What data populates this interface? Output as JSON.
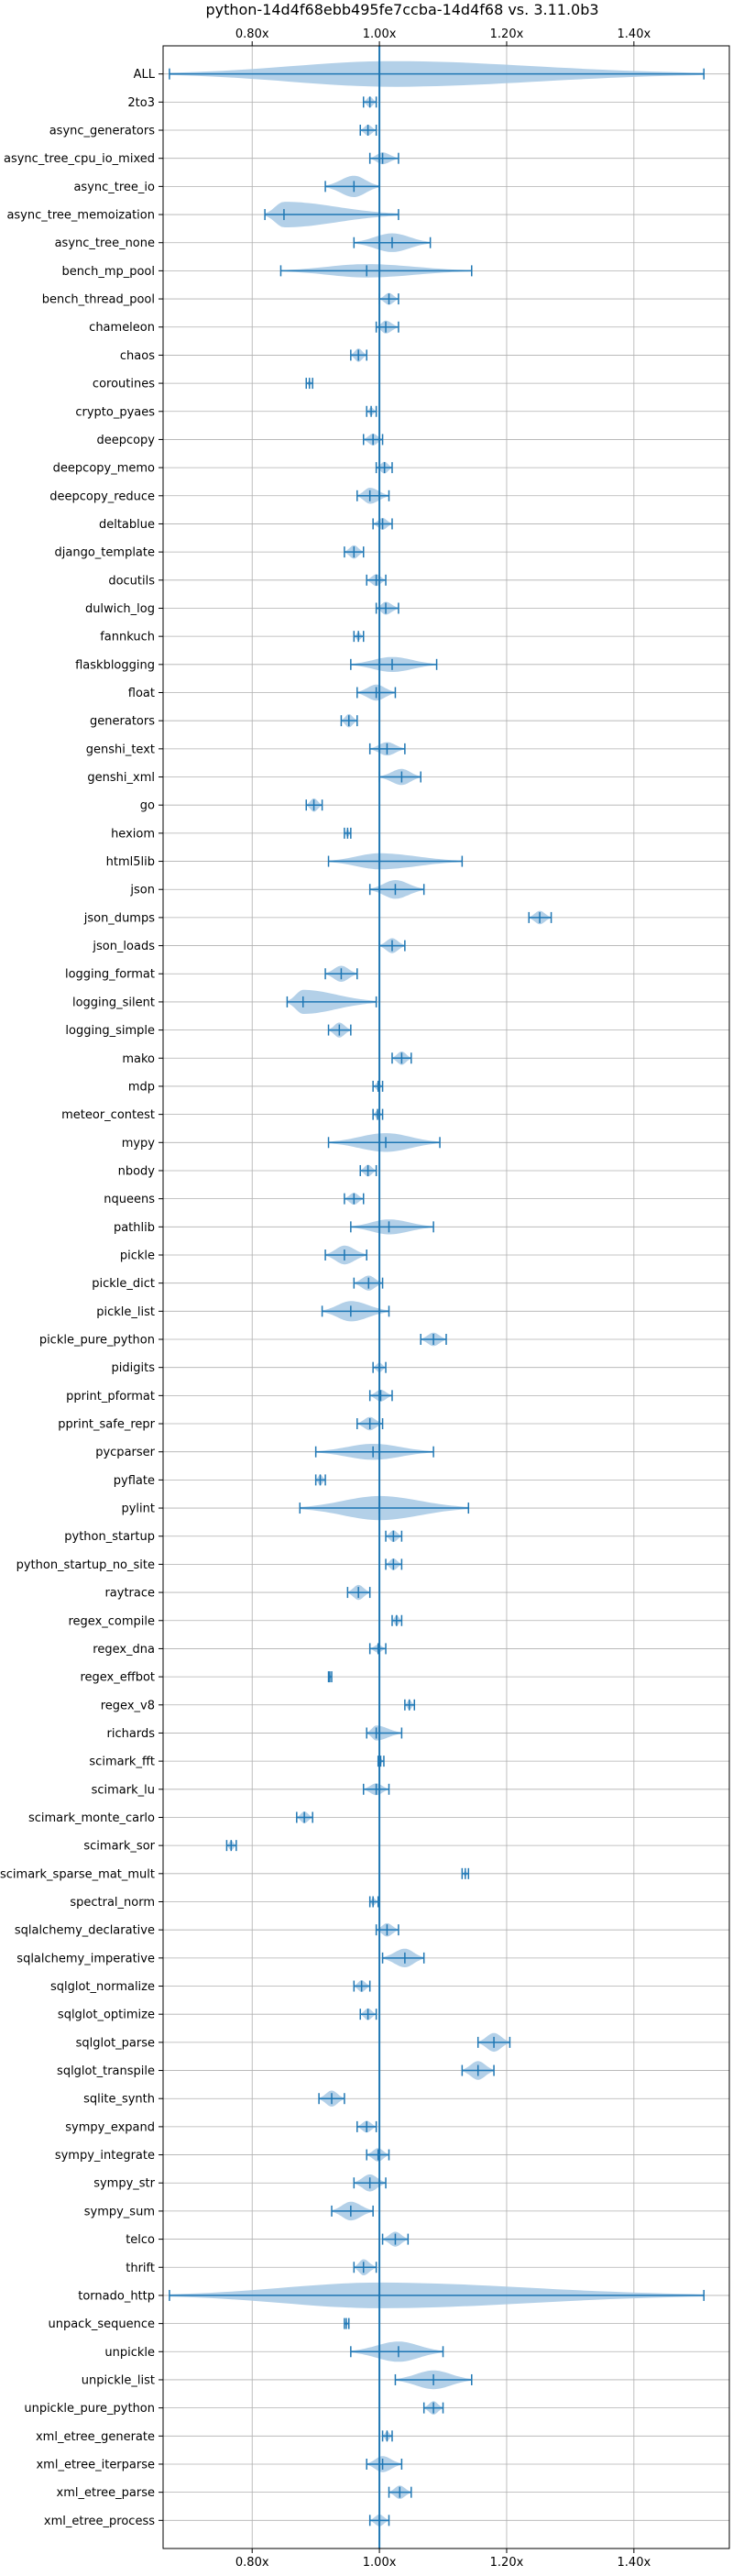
{
  "chart_data": {
    "type": "violin",
    "title": "python-14d4f68ebb495fe7ccba-14d4f68 vs. 3.11.0b3",
    "xlim": [
      0.66,
      1.55
    ],
    "xticks": [
      {
        "value": 0.8,
        "label": "0.80x"
      },
      {
        "value": 1.0,
        "label": "1.00x"
      },
      {
        "value": 1.2,
        "label": "1.20x"
      },
      {
        "value": 1.4,
        "label": "1.40x"
      }
    ],
    "grid": true,
    "color": "#1f77b4",
    "fill_color": "#a6c8e4",
    "categories": [
      "ALL",
      "2to3",
      "async_generators",
      "async_tree_cpu_io_mixed",
      "async_tree_io",
      "async_tree_memoization",
      "async_tree_none",
      "bench_mp_pool",
      "bench_thread_pool",
      "chameleon",
      "chaos",
      "coroutines",
      "crypto_pyaes",
      "deepcopy",
      "deepcopy_memo",
      "deepcopy_reduce",
      "deltablue",
      "django_template",
      "docutils",
      "dulwich_log",
      "fannkuch",
      "flaskblogging",
      "float",
      "generators",
      "genshi_text",
      "genshi_xml",
      "go",
      "hexiom",
      "html5lib",
      "json",
      "json_dumps",
      "json_loads",
      "logging_format",
      "logging_silent",
      "logging_simple",
      "mako",
      "mdp",
      "meteor_contest",
      "mypy",
      "nbody",
      "nqueens",
      "pathlib",
      "pickle",
      "pickle_dict",
      "pickle_list",
      "pickle_pure_python",
      "pidigits",
      "pprint_pformat",
      "pprint_safe_repr",
      "pycparser",
      "pyflate",
      "pylint",
      "python_startup",
      "python_startup_no_site",
      "raytrace",
      "regex_compile",
      "regex_dna",
      "regex_effbot",
      "regex_v8",
      "richards",
      "scimark_fft",
      "scimark_lu",
      "scimark_monte_carlo",
      "scimark_sor",
      "scimark_sparse_mat_mult",
      "spectral_norm",
      "sqlalchemy_declarative",
      "sqlalchemy_imperative",
      "sqlglot_normalize",
      "sqlglot_optimize",
      "sqlglot_parse",
      "sqlglot_transpile",
      "sqlite_synth",
      "sympy_expand",
      "sympy_integrate",
      "sympy_str",
      "sympy_sum",
      "telco",
      "thrift",
      "tornado_http",
      "unpack_sequence",
      "unpickle",
      "unpickle_list",
      "unpickle_pure_python",
      "xml_etree_generate",
      "xml_etree_iterparse",
      "xml_etree_parse",
      "xml_etree_process"
    ],
    "series": [
      {
        "min": 0.67,
        "max": 1.51,
        "mean": 1.0,
        "peak": 1.02,
        "hw": 0.48
      },
      {
        "min": 0.975,
        "max": 0.995,
        "mean": 0.985,
        "peak": 0.985,
        "hw": 0.2
      },
      {
        "min": 0.97,
        "max": 0.995,
        "mean": 0.982,
        "peak": 0.982,
        "hw": 0.2
      },
      {
        "min": 0.985,
        "max": 1.03,
        "mean": 1.005,
        "peak": 1.005,
        "hw": 0.22
      },
      {
        "min": 0.915,
        "max": 1.0,
        "mean": 0.96,
        "peak": 0.96,
        "hw": 0.4
      },
      {
        "min": 0.82,
        "max": 1.03,
        "mean": 0.85,
        "peak": 0.85,
        "hw": 0.48
      },
      {
        "min": 0.96,
        "max": 1.08,
        "mean": 1.02,
        "peak": 1.02,
        "hw": 0.35
      },
      {
        "min": 0.845,
        "max": 1.145,
        "mean": 0.98,
        "peak": 0.98,
        "hw": 0.25
      },
      {
        "min": 1.0,
        "max": 1.03,
        "mean": 1.015,
        "peak": 1.015,
        "hw": 0.22
      },
      {
        "min": 0.995,
        "max": 1.03,
        "mean": 1.01,
        "peak": 1.01,
        "hw": 0.24
      },
      {
        "min": 0.955,
        "max": 0.98,
        "mean": 0.967,
        "peak": 0.967,
        "hw": 0.25
      },
      {
        "min": 0.885,
        "max": 0.895,
        "mean": 0.89,
        "peak": 0.89,
        "hw": 0.1
      },
      {
        "min": 0.98,
        "max": 0.995,
        "mean": 0.987,
        "peak": 0.987,
        "hw": 0.15
      },
      {
        "min": 0.975,
        "max": 1.005,
        "mean": 0.99,
        "peak": 0.99,
        "hw": 0.22
      },
      {
        "min": 0.995,
        "max": 1.02,
        "mean": 1.008,
        "peak": 1.008,
        "hw": 0.22
      },
      {
        "min": 0.965,
        "max": 1.015,
        "mean": 0.985,
        "peak": 0.985,
        "hw": 0.3
      },
      {
        "min": 0.99,
        "max": 1.02,
        "mean": 1.005,
        "peak": 1.005,
        "hw": 0.22
      },
      {
        "min": 0.945,
        "max": 0.975,
        "mean": 0.96,
        "peak": 0.96,
        "hw": 0.25
      },
      {
        "min": 0.98,
        "max": 1.01,
        "mean": 0.995,
        "peak": 0.995,
        "hw": 0.22
      },
      {
        "min": 0.995,
        "max": 1.03,
        "mean": 1.01,
        "peak": 1.01,
        "hw": 0.24
      },
      {
        "min": 0.96,
        "max": 0.975,
        "mean": 0.967,
        "peak": 0.967,
        "hw": 0.15
      },
      {
        "min": 0.955,
        "max": 1.09,
        "mean": 1.02,
        "peak": 1.02,
        "hw": 0.28
      },
      {
        "min": 0.965,
        "max": 1.025,
        "mean": 0.995,
        "peak": 0.995,
        "hw": 0.3
      },
      {
        "min": 0.94,
        "max": 0.965,
        "mean": 0.952,
        "peak": 0.952,
        "hw": 0.25
      },
      {
        "min": 0.985,
        "max": 1.04,
        "mean": 1.012,
        "peak": 1.012,
        "hw": 0.25
      },
      {
        "min": 1.0,
        "max": 1.065,
        "mean": 1.035,
        "peak": 1.035,
        "hw": 0.3
      },
      {
        "min": 0.885,
        "max": 0.91,
        "mean": 0.897,
        "peak": 0.897,
        "hw": 0.25
      },
      {
        "min": 0.945,
        "max": 0.955,
        "mean": 0.95,
        "peak": 0.95,
        "hw": 0.15
      },
      {
        "min": 0.92,
        "max": 1.13,
        "mean": 1.0,
        "peak": 1.0,
        "hw": 0.3
      },
      {
        "min": 0.985,
        "max": 1.07,
        "mean": 1.025,
        "peak": 1.025,
        "hw": 0.35
      },
      {
        "min": 1.235,
        "max": 1.27,
        "mean": 1.252,
        "peak": 1.252,
        "hw": 0.25
      },
      {
        "min": 1.0,
        "max": 1.04,
        "mean": 1.02,
        "peak": 1.02,
        "hw": 0.28
      },
      {
        "min": 0.915,
        "max": 0.965,
        "mean": 0.94,
        "peak": 0.94,
        "hw": 0.3
      },
      {
        "min": 0.855,
        "max": 0.995,
        "mean": 0.88,
        "peak": 0.88,
        "hw": 0.45
      },
      {
        "min": 0.92,
        "max": 0.955,
        "mean": 0.937,
        "peak": 0.937,
        "hw": 0.28
      },
      {
        "min": 1.02,
        "max": 1.05,
        "mean": 1.035,
        "peak": 1.035,
        "hw": 0.25
      },
      {
        "min": 0.99,
        "max": 1.005,
        "mean": 0.998,
        "peak": 0.998,
        "hw": 0.15
      },
      {
        "min": 0.99,
        "max": 1.005,
        "mean": 0.997,
        "peak": 0.997,
        "hw": 0.15
      },
      {
        "min": 0.92,
        "max": 1.095,
        "mean": 1.01,
        "peak": 1.01,
        "hw": 0.35
      },
      {
        "min": 0.97,
        "max": 0.995,
        "mean": 0.982,
        "peak": 0.982,
        "hw": 0.22
      },
      {
        "min": 0.945,
        "max": 0.975,
        "mean": 0.96,
        "peak": 0.96,
        "hw": 0.22
      },
      {
        "min": 0.955,
        "max": 1.085,
        "mean": 1.015,
        "peak": 1.015,
        "hw": 0.28
      },
      {
        "min": 0.915,
        "max": 0.98,
        "mean": 0.945,
        "peak": 0.945,
        "hw": 0.35
      },
      {
        "min": 0.96,
        "max": 1.005,
        "mean": 0.983,
        "peak": 0.983,
        "hw": 0.28
      },
      {
        "min": 0.91,
        "max": 1.015,
        "mean": 0.955,
        "peak": 0.955,
        "hw": 0.38
      },
      {
        "min": 1.065,
        "max": 1.105,
        "mean": 1.085,
        "peak": 1.085,
        "hw": 0.25
      },
      {
        "min": 0.99,
        "max": 1.01,
        "mean": 1.0,
        "peak": 1.0,
        "hw": 0.18
      },
      {
        "min": 0.985,
        "max": 1.02,
        "mean": 1.002,
        "peak": 1.002,
        "hw": 0.22
      },
      {
        "min": 0.965,
        "max": 1.005,
        "mean": 0.985,
        "peak": 0.985,
        "hw": 0.25
      },
      {
        "min": 0.9,
        "max": 1.085,
        "mean": 0.99,
        "peak": 0.99,
        "hw": 0.3
      },
      {
        "min": 0.9,
        "max": 0.915,
        "mean": 0.907,
        "peak": 0.907,
        "hw": 0.2
      },
      {
        "min": 0.875,
        "max": 1.14,
        "mean": 1.0,
        "peak": 1.0,
        "hw": 0.45
      },
      {
        "min": 1.01,
        "max": 1.035,
        "mean": 1.022,
        "peak": 1.022,
        "hw": 0.22
      },
      {
        "min": 1.01,
        "max": 1.035,
        "mean": 1.022,
        "peak": 1.022,
        "hw": 0.22
      },
      {
        "min": 0.95,
        "max": 0.985,
        "mean": 0.967,
        "peak": 0.967,
        "hw": 0.28
      },
      {
        "min": 1.02,
        "max": 1.035,
        "mean": 1.027,
        "peak": 1.027,
        "hw": 0.2
      },
      {
        "min": 0.985,
        "max": 1.01,
        "mean": 0.998,
        "peak": 0.998,
        "hw": 0.15
      },
      {
        "min": 0.92,
        "max": 0.925,
        "mean": 0.922,
        "peak": 0.922,
        "hw": 0.1
      },
      {
        "min": 1.04,
        "max": 1.055,
        "mean": 1.047,
        "peak": 1.047,
        "hw": 0.18
      },
      {
        "min": 0.98,
        "max": 1.035,
        "mean": 0.995,
        "peak": 0.995,
        "hw": 0.28
      },
      {
        "min": 0.998,
        "max": 1.007,
        "mean": 1.002,
        "peak": 1.002,
        "hw": 0.1
      },
      {
        "min": 0.975,
        "max": 1.015,
        "mean": 0.995,
        "peak": 0.995,
        "hw": 0.22
      },
      {
        "min": 0.87,
        "max": 0.895,
        "mean": 0.882,
        "peak": 0.882,
        "hw": 0.22
      },
      {
        "min": 0.76,
        "max": 0.775,
        "mean": 0.767,
        "peak": 0.767,
        "hw": 0.18
      },
      {
        "min": 1.13,
        "max": 1.14,
        "mean": 1.135,
        "peak": 1.135,
        "hw": 0.1
      },
      {
        "min": 0.985,
        "max": 0.998,
        "mean": 0.99,
        "peak": 0.99,
        "hw": 0.15
      },
      {
        "min": 0.995,
        "max": 1.03,
        "mean": 1.012,
        "peak": 1.012,
        "hw": 0.25
      },
      {
        "min": 1.005,
        "max": 1.07,
        "mean": 1.04,
        "peak": 1.04,
        "hw": 0.35
      },
      {
        "min": 0.96,
        "max": 0.985,
        "mean": 0.972,
        "peak": 0.972,
        "hw": 0.22
      },
      {
        "min": 0.97,
        "max": 0.995,
        "mean": 0.982,
        "peak": 0.982,
        "hw": 0.22
      },
      {
        "min": 1.155,
        "max": 1.205,
        "mean": 1.18,
        "peak": 1.18,
        "hw": 0.35
      },
      {
        "min": 1.13,
        "max": 1.18,
        "mean": 1.155,
        "peak": 1.155,
        "hw": 0.35
      },
      {
        "min": 0.905,
        "max": 0.945,
        "mean": 0.925,
        "peak": 0.925,
        "hw": 0.3
      },
      {
        "min": 0.965,
        "max": 0.995,
        "mean": 0.98,
        "peak": 0.98,
        "hw": 0.22
      },
      {
        "min": 0.98,
        "max": 1.015,
        "mean": 0.998,
        "peak": 0.998,
        "hw": 0.25
      },
      {
        "min": 0.96,
        "max": 1.01,
        "mean": 0.985,
        "peak": 0.985,
        "hw": 0.32
      },
      {
        "min": 0.925,
        "max": 0.99,
        "mean": 0.955,
        "peak": 0.955,
        "hw": 0.35
      },
      {
        "min": 1.005,
        "max": 1.045,
        "mean": 1.025,
        "peak": 1.025,
        "hw": 0.28
      },
      {
        "min": 0.96,
        "max": 0.995,
        "mean": 0.975,
        "peak": 0.975,
        "hw": 0.3
      },
      {
        "min": 0.67,
        "max": 1.51,
        "mean": 1.0,
        "peak": 1.0,
        "hw": 0.48
      },
      {
        "min": 0.945,
        "max": 0.952,
        "mean": 0.948,
        "peak": 0.948,
        "hw": 0.1
      },
      {
        "min": 0.955,
        "max": 1.1,
        "mean": 1.03,
        "peak": 1.03,
        "hw": 0.38
      },
      {
        "min": 1.025,
        "max": 1.145,
        "mean": 1.085,
        "peak": 1.085,
        "hw": 0.35
      },
      {
        "min": 1.07,
        "max": 1.1,
        "mean": 1.085,
        "peak": 1.085,
        "hw": 0.25
      },
      {
        "min": 1.005,
        "max": 1.02,
        "mean": 1.012,
        "peak": 1.012,
        "hw": 0.18
      },
      {
        "min": 0.98,
        "max": 1.035,
        "mean": 1.005,
        "peak": 1.005,
        "hw": 0.3
      },
      {
        "min": 1.015,
        "max": 1.05,
        "mean": 1.032,
        "peak": 1.032,
        "hw": 0.25
      },
      {
        "min": 0.985,
        "max": 1.015,
        "mean": 1.0,
        "peak": 1.0,
        "hw": 0.22
      }
    ]
  }
}
